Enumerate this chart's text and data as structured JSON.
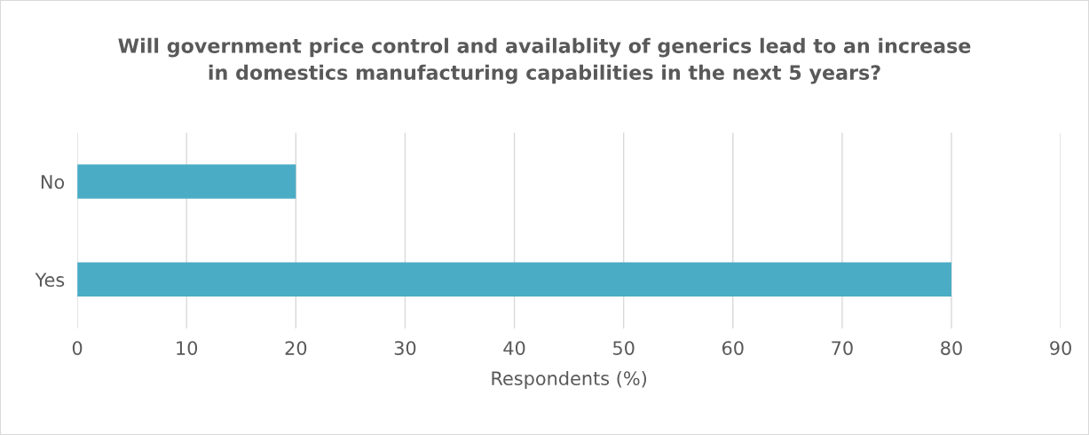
{
  "chart_data": {
    "type": "bar",
    "orientation": "horizontal",
    "title": "Will government price control and availablity of generics lead to an increase\nin domestics manufacturing capabilities in the next 5 years?",
    "xlabel": "Respondents (%)",
    "categories": [
      "No",
      "Yes"
    ],
    "values": [
      20,
      80
    ],
    "color": "#4bacc6",
    "xlim": [
      0,
      90
    ],
    "xticks": [
      0,
      10,
      20,
      30,
      40,
      50,
      60,
      70,
      80,
      90
    ],
    "grid": "x",
    "legend": false
  }
}
